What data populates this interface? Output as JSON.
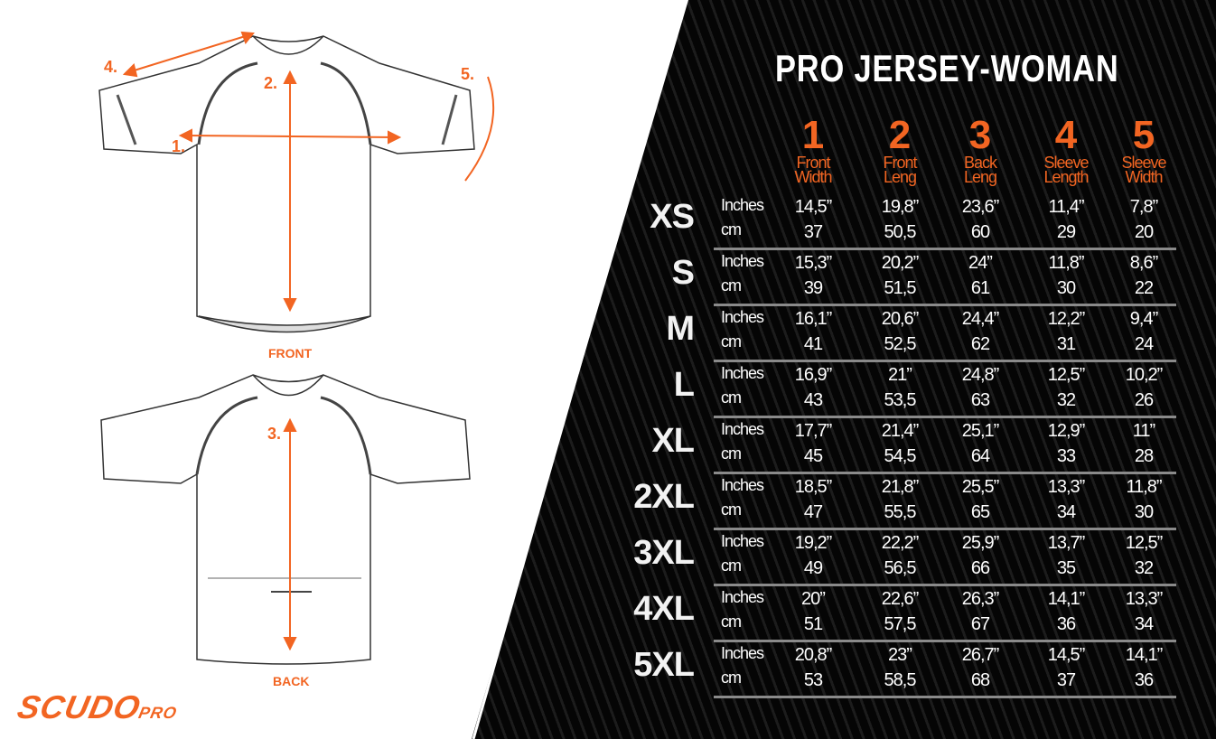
{
  "title": "PRO JERSEY-WOMAN",
  "accent_color": "#f26522",
  "columns": [
    {
      "num": "1",
      "label1": "Front",
      "label2": "Width"
    },
    {
      "num": "2",
      "label1": "Front",
      "label2": "Leng"
    },
    {
      "num": "3",
      "label1": "Back",
      "label2": "Leng"
    },
    {
      "num": "4",
      "label1": "Sleeve",
      "label2": "Length"
    },
    {
      "num": "5",
      "label1": "Sleeve",
      "label2": "Width"
    }
  ],
  "units": {
    "inches": "Inches",
    "cm": "cm"
  },
  "rows": [
    {
      "size": "XS",
      "inches": [
        "14,5”",
        "19,8”",
        "23,6”",
        "11,4”",
        "7,8”"
      ],
      "cm": [
        "37",
        "50,5",
        "60",
        "29",
        "20"
      ]
    },
    {
      "size": "S",
      "inches": [
        "15,3”",
        "20,2”",
        "24”",
        "11,8”",
        "8,6”"
      ],
      "cm": [
        "39",
        "51,5",
        "61",
        "30",
        "22"
      ]
    },
    {
      "size": "M",
      "inches": [
        "16,1”",
        "20,6”",
        "24,4”",
        "12,2”",
        "9,4”"
      ],
      "cm": [
        "41",
        "52,5",
        "62",
        "31",
        "24"
      ]
    },
    {
      "size": "L",
      "inches": [
        "16,9”",
        "21”",
        "24,8”",
        "12,5”",
        "10,2”"
      ],
      "cm": [
        "43",
        "53,5",
        "63",
        "32",
        "26"
      ]
    },
    {
      "size": "XL",
      "inches": [
        "17,7”",
        "21,4”",
        "25,1”",
        "12,9”",
        "11”"
      ],
      "cm": [
        "45",
        "54,5",
        "64",
        "33",
        "28"
      ]
    },
    {
      "size": "2XL",
      "inches": [
        "18,5”",
        "21,8”",
        "25,5”",
        "13,3”",
        "11,8”"
      ],
      "cm": [
        "47",
        "55,5",
        "65",
        "34",
        "30"
      ]
    },
    {
      "size": "3XL",
      "inches": [
        "19,2”",
        "22,2”",
        "25,9”",
        "13,7”",
        "12,5”"
      ],
      "cm": [
        "49",
        "56,5",
        "66",
        "35",
        "32"
      ]
    },
    {
      "size": "4XL",
      "inches": [
        "20”",
        "22,6”",
        "26,3”",
        "14,1”",
        "13,3”"
      ],
      "cm": [
        "51",
        "57,5",
        "67",
        "36",
        "34"
      ]
    },
    {
      "size": "5XL",
      "inches": [
        "20,8”",
        "23”",
        "26,7”",
        "14,5”",
        "14,1”"
      ],
      "cm": [
        "53",
        "58,5",
        "68",
        "37",
        "36"
      ]
    }
  ],
  "diagram": {
    "front_label": "FRONT",
    "back_label": "BACK",
    "m1": "1.",
    "m2": "2.",
    "m3": "3.",
    "m4": "4.",
    "m5": "5."
  },
  "logo": {
    "text": "SCUDO",
    "suffix": "PRO"
  }
}
